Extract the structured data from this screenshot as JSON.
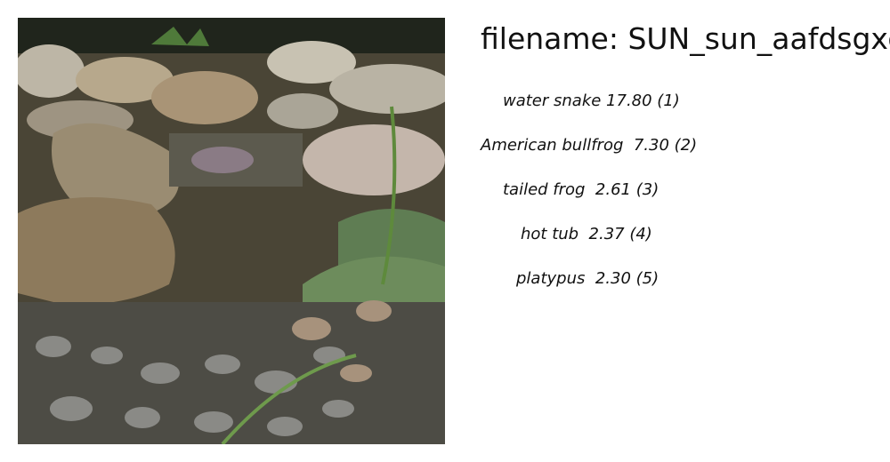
{
  "image": {
    "alt": "rocky stream with pebbles and plants"
  },
  "filename_label": "filename: SUN_sun_aafdsgxc",
  "predictions": [
    {
      "text": "water snake 17.80 (1)"
    },
    {
      "text": "American bullfrog  7.30 (2)"
    },
    {
      "text": "tailed frog  2.61 (3)"
    },
    {
      "text": "hot tub  2.37 (4)"
    },
    {
      "text": "platypus  2.30 (5)"
    }
  ]
}
